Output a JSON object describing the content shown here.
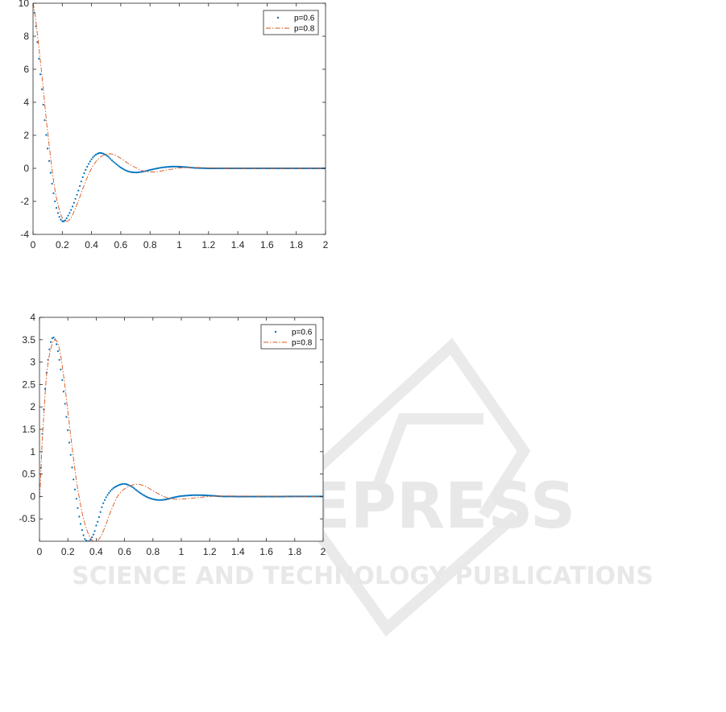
{
  "watermark": {
    "title": "SCITEPRESS",
    "subtitle": "SCIENCE AND TECHNOLOGY PUBLICATIONS"
  },
  "chart_data": [
    {
      "type": "line",
      "title": "",
      "xlabel": "",
      "ylabel": "",
      "xlim": [
        0,
        2
      ],
      "ylim": [
        -4,
        10
      ],
      "xticks": [
        0,
        0.2,
        0.4,
        0.6,
        0.8,
        1,
        1.2,
        1.4,
        1.6,
        1.8,
        2
      ],
      "yticks": [
        -4,
        -2,
        0,
        2,
        4,
        6,
        8,
        10
      ],
      "grid": false,
      "legend_position": "top-right",
      "series": [
        {
          "name": "p=0.6",
          "style": "dots",
          "color": "#0072BD",
          "x": [
            0,
            0.05,
            0.1,
            0.15,
            0.2,
            0.25,
            0.3,
            0.35,
            0.4,
            0.45,
            0.5,
            0.55,
            0.6,
            0.65,
            0.7,
            0.75,
            0.8,
            0.85,
            0.9,
            0.95,
            1.0,
            1.05,
            1.1,
            1.2,
            1.4,
            2
          ],
          "y": [
            10,
            5.7,
            1.2,
            -2.0,
            -3.2,
            -2.7,
            -1.6,
            -0.3,
            0.55,
            0.92,
            0.8,
            0.4,
            0.05,
            -0.18,
            -0.25,
            -0.2,
            -0.1,
            0.0,
            0.07,
            0.1,
            0.1,
            0.07,
            0.03,
            0,
            0,
            0
          ]
        },
        {
          "name": "p=0.8",
          "style": "dash-dot",
          "color": "#D95319",
          "x": [
            0,
            0.05,
            0.1,
            0.15,
            0.2,
            0.25,
            0.3,
            0.35,
            0.4,
            0.45,
            0.5,
            0.55,
            0.6,
            0.65,
            0.7,
            0.75,
            0.8,
            0.85,
            0.9,
            0.95,
            1.0,
            1.1,
            1.2,
            1.3,
            1.5,
            2
          ],
          "y": [
            10,
            6.5,
            2.2,
            -1.3,
            -3.0,
            -3.1,
            -2.2,
            -1.0,
            0.0,
            0.6,
            0.85,
            0.85,
            0.6,
            0.3,
            0.05,
            -0.15,
            -0.22,
            -0.2,
            -0.12,
            -0.05,
            0.02,
            0.05,
            0.03,
            0,
            0,
            0
          ]
        }
      ]
    },
    {
      "type": "line",
      "title": "",
      "xlabel": "",
      "ylabel": "",
      "xlim": [
        0,
        2
      ],
      "ylim": [
        -1,
        4
      ],
      "xticks": [
        0,
        0.2,
        0.4,
        0.6,
        0.8,
        1,
        1.2,
        1.4,
        1.6,
        1.8,
        2
      ],
      "yticks": [
        -0.5,
        0,
        0.5,
        1,
        1.5,
        2,
        2.5,
        3,
        3.5,
        4
      ],
      "grid": false,
      "legend_position": "top-right",
      "series": [
        {
          "name": "p=0.6",
          "style": "dots",
          "color": "#0072BD",
          "x": [
            0,
            0.02,
            0.04,
            0.06,
            0.08,
            0.1,
            0.12,
            0.14,
            0.16,
            0.18,
            0.2,
            0.22,
            0.24,
            0.26,
            0.28,
            0.3,
            0.32,
            0.35,
            0.38,
            0.4,
            0.45,
            0.5,
            0.55,
            0.6,
            0.65,
            0.7,
            0.75,
            0.8,
            0.85,
            0.9,
            0.95,
            1.0,
            1.1,
            1.2,
            1.3,
            2
          ],
          "y": [
            0,
            1.4,
            2.4,
            3.05,
            3.45,
            3.55,
            3.4,
            3.05,
            2.6,
            2.07,
            1.48,
            0.93,
            0.38,
            -0.05,
            -0.45,
            -0.75,
            -0.95,
            -1.0,
            -0.85,
            -0.65,
            -0.15,
            0.12,
            0.24,
            0.28,
            0.22,
            0.1,
            0.0,
            -0.06,
            -0.08,
            -0.06,
            -0.02,
            0.01,
            0.03,
            0.02,
            0,
            0
          ]
        },
        {
          "name": "p=0.8",
          "style": "dash-dot",
          "color": "#D95319",
          "x": [
            0,
            0.02,
            0.05,
            0.08,
            0.11,
            0.14,
            0.17,
            0.2,
            0.23,
            0.26,
            0.3,
            0.34,
            0.38,
            0.42,
            0.46,
            0.5,
            0.55,
            0.6,
            0.65,
            0.7,
            0.75,
            0.8,
            0.85,
            0.9,
            0.95,
            1.0,
            1.1,
            1.2,
            1.3,
            2
          ],
          "y": [
            0,
            1.3,
            2.7,
            3.3,
            3.5,
            3.3,
            2.7,
            1.9,
            1.1,
            0.35,
            -0.35,
            -0.8,
            -1.0,
            -0.95,
            -0.7,
            -0.35,
            0.0,
            0.17,
            0.25,
            0.27,
            0.22,
            0.13,
            0.04,
            -0.03,
            -0.06,
            -0.06,
            -0.03,
            0.0,
            0.01,
            0
          ]
        }
      ]
    }
  ]
}
